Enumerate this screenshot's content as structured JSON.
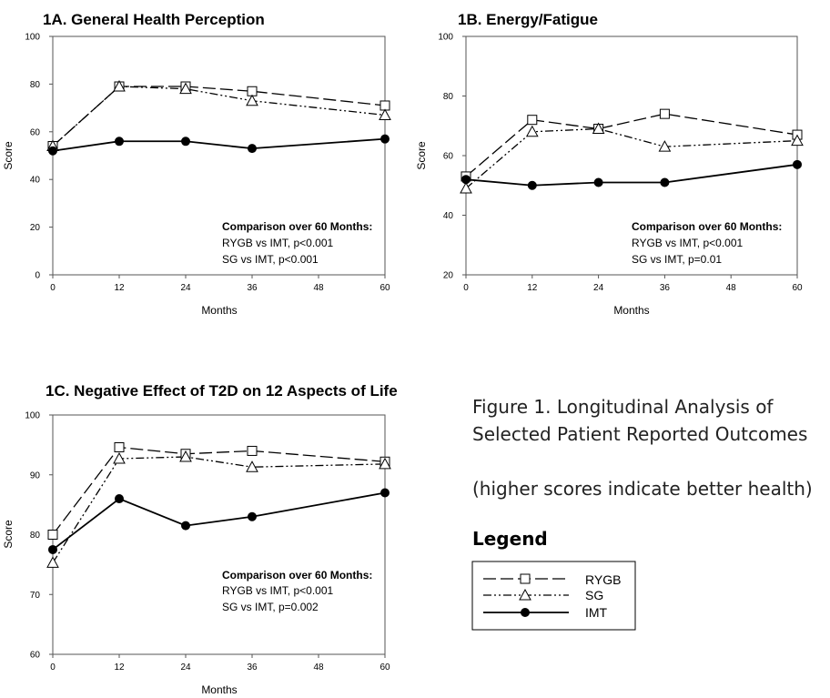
{
  "chart_data": [
    {
      "id": "1A",
      "type": "line",
      "title": "1A. General Health Perception",
      "xlabel": "Months",
      "ylabel": "Score",
      "x": [
        0,
        12,
        24,
        36,
        60
      ],
      "xticks": [
        0,
        12,
        24,
        36,
        48,
        60
      ],
      "xlim": [
        0,
        60
      ],
      "ylim": [
        0,
        100
      ],
      "yticks": [
        0,
        20,
        40,
        60,
        80,
        100
      ],
      "series": [
        {
          "name": "RYGB",
          "values": [
            54,
            79,
            79,
            77,
            71
          ]
        },
        {
          "name": "SG",
          "values": [
            54,
            79,
            78,
            73,
            67
          ]
        },
        {
          "name": "IMT",
          "values": [
            52,
            56,
            56,
            53,
            57
          ]
        }
      ],
      "annotation": {
        "heading": "Comparison over 60 Months:",
        "lines": [
          "RYGB vs IMT, p<0.001",
          "SG vs IMT, p<0.001"
        ]
      }
    },
    {
      "id": "1B",
      "type": "line",
      "title": "1B. Energy/Fatigue",
      "xlabel": "Months",
      "ylabel": "Score",
      "x": [
        0,
        12,
        24,
        36,
        60
      ],
      "xticks": [
        0,
        12,
        24,
        36,
        48,
        60
      ],
      "xlim": [
        0,
        60
      ],
      "ylim": [
        20,
        100
      ],
      "yticks": [
        20,
        40,
        60,
        80,
        100
      ],
      "series": [
        {
          "name": "RYGB",
          "values": [
            53,
            72,
            69,
            74,
            67
          ]
        },
        {
          "name": "SG",
          "values": [
            49,
            68,
            69,
            63,
            65
          ]
        },
        {
          "name": "IMT",
          "values": [
            52,
            50,
            51,
            51,
            57
          ]
        }
      ],
      "annotation": {
        "heading": "Comparison over 60 Months:",
        "lines": [
          "RYGB vs IMT, p<0.001",
          "SG vs IMT, p=0.01"
        ]
      }
    },
    {
      "id": "1C",
      "type": "line",
      "title": "1C. Negative Effect of T2D on 12 Aspects of Life",
      "xlabel": "Months",
      "ylabel": "Score",
      "x": [
        0,
        12,
        24,
        36,
        60
      ],
      "xticks": [
        0,
        12,
        24,
        36,
        48,
        60
      ],
      "xlim": [
        0,
        60
      ],
      "ylim": [
        60,
        100
      ],
      "yticks": [
        60,
        70,
        80,
        90,
        100
      ],
      "series": [
        {
          "name": "RYGB",
          "values": [
            80,
            94.6,
            93.5,
            94,
            92.2
          ]
        },
        {
          "name": "SG",
          "values": [
            75.3,
            92.7,
            93,
            91.3,
            91.8
          ]
        },
        {
          "name": "IMT",
          "values": [
            77.5,
            86,
            81.5,
            83,
            87
          ]
        }
      ],
      "annotation": {
        "heading": "Comparison over 60 Months:",
        "lines": [
          "RYGB vs IMT, p<0.001",
          "SG vs IMT, p=0.002"
        ]
      }
    }
  ],
  "caption": {
    "line1": "Figure 1.  Longitudinal Analysis of",
    "line2": "Selected Patient Reported Outcomes",
    "note": "(higher scores indicate better health)"
  },
  "legend": {
    "title": "Legend",
    "entries": [
      {
        "name": "RYGB",
        "style": "long-dash",
        "marker": "open-square"
      },
      {
        "name": "SG",
        "style": "dash-dot-dot",
        "marker": "open-triangle"
      },
      {
        "name": "IMT",
        "style": "solid",
        "marker": "filled-circle"
      }
    ]
  }
}
